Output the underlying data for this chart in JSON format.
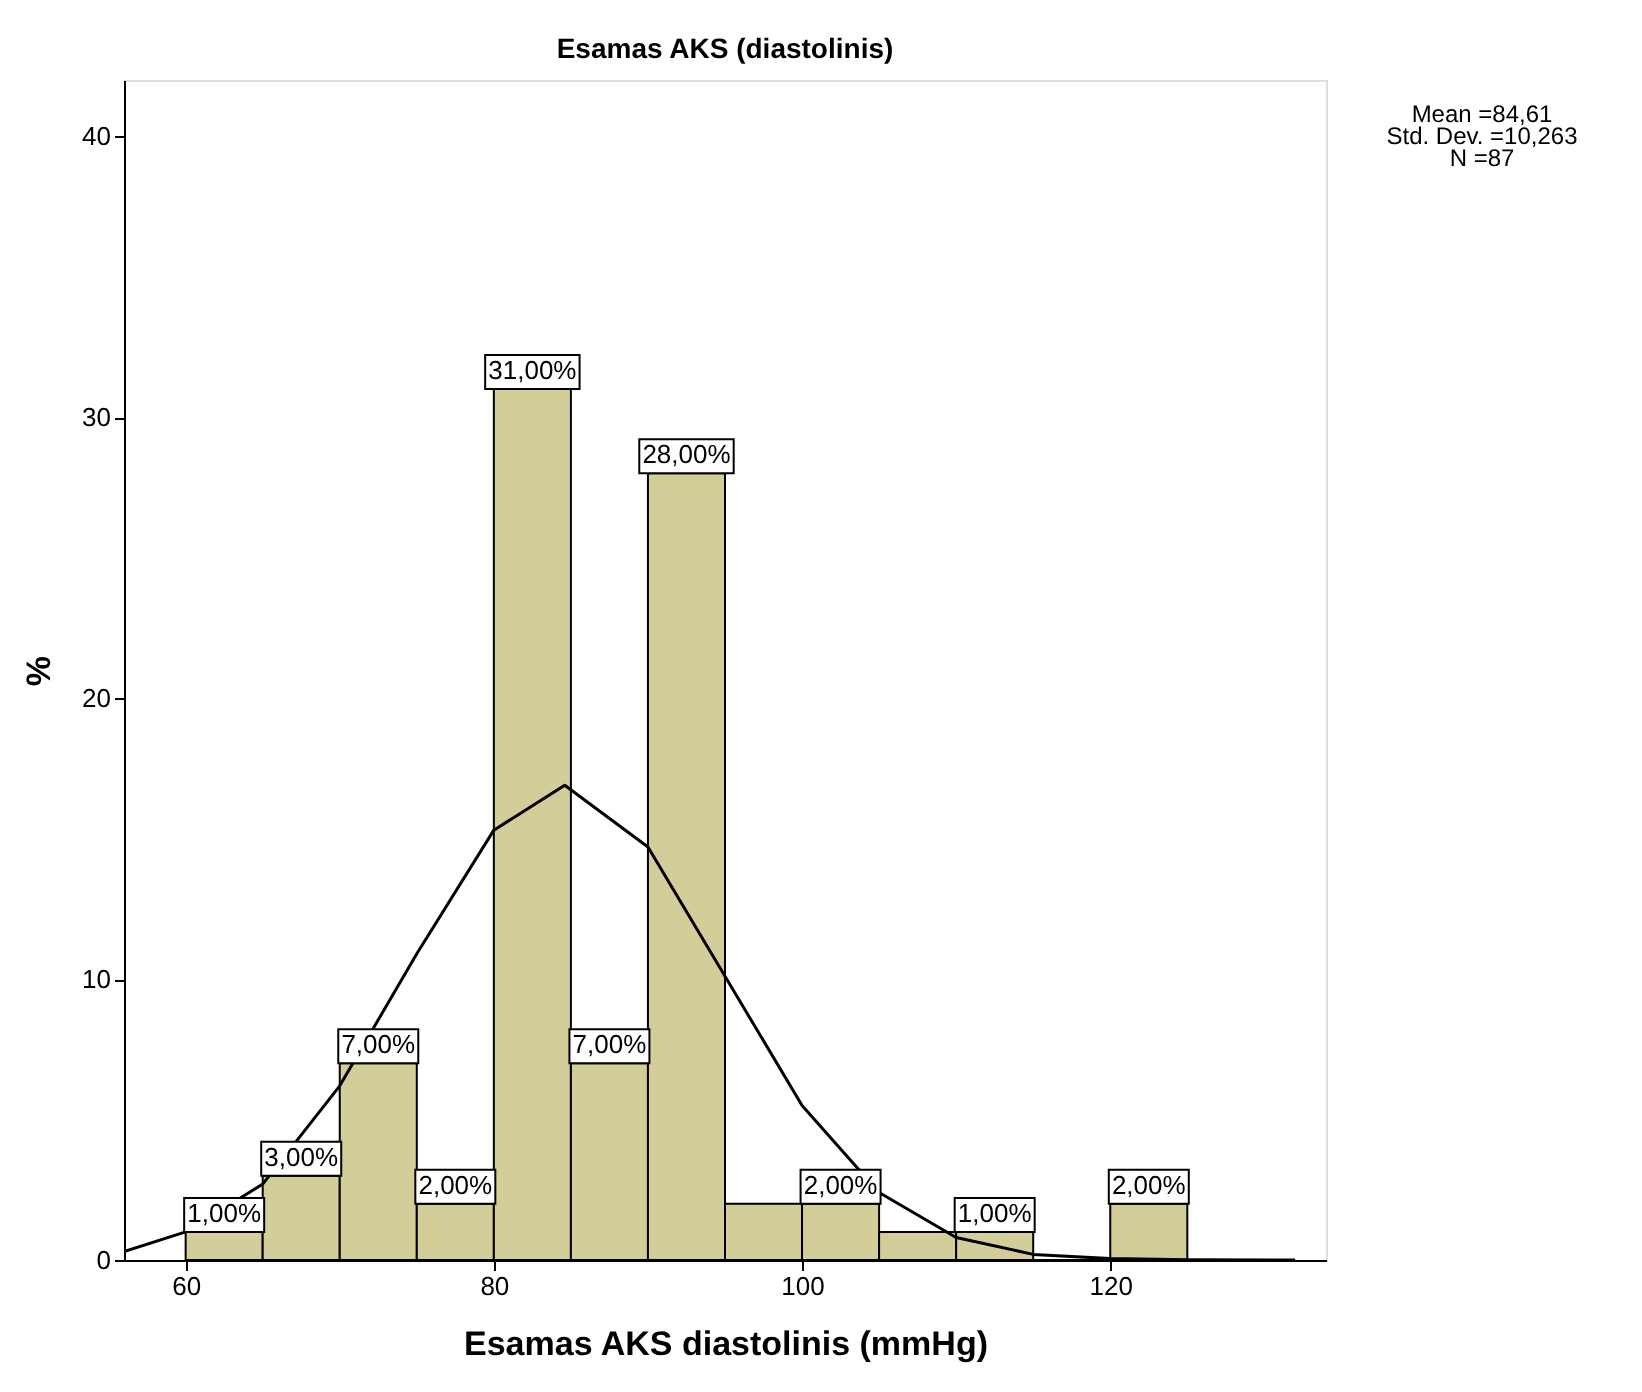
{
  "chart_data": {
    "type": "histogram",
    "title": "Esamas AKS (diastolinis)",
    "xlabel": "Esamas AKS diastolinis (mmHg)",
    "ylabel": "%",
    "bins": [
      60,
      65,
      70,
      75,
      80,
      85,
      90,
      95,
      100,
      105,
      110,
      115,
      120,
      125
    ],
    "values": [
      1,
      3,
      7,
      2,
      31,
      7,
      28,
      2,
      2,
      1,
      1,
      0,
      2
    ],
    "value_labels": [
      "1,00%",
      "3,00%",
      "7,00%",
      "2,00%",
      "31,00%",
      "7,00%",
      "28,00%",
      null,
      "2,00%",
      null,
      "1,00%",
      null,
      "2,00%"
    ],
    "color": "#d3cd9a",
    "series": [
      {
        "type": "line",
        "color": "#000000",
        "x": [
          56,
          60,
          65,
          70,
          75,
          80,
          84.6,
          90,
          95,
          100,
          105,
          110,
          115,
          120,
          125,
          132
        ],
        "values": [
          0.3,
          1.0,
          2.7,
          6.2,
          10.9,
          15.3,
          16.9,
          14.7,
          10.1,
          5.5,
          2.4,
          0.8,
          0.2,
          0.05,
          0.01,
          0
        ]
      }
    ],
    "xlim": [
      56,
      134
    ],
    "ylim": [
      0,
      42
    ],
    "xticks": [
      60,
      80,
      100,
      120
    ],
    "yticks": [
      0,
      10,
      20,
      30,
      40
    ],
    "grid": false,
    "annotations": [
      "Mean =84,61",
      "Std. Dev. =10,263",
      "N =87"
    ]
  }
}
